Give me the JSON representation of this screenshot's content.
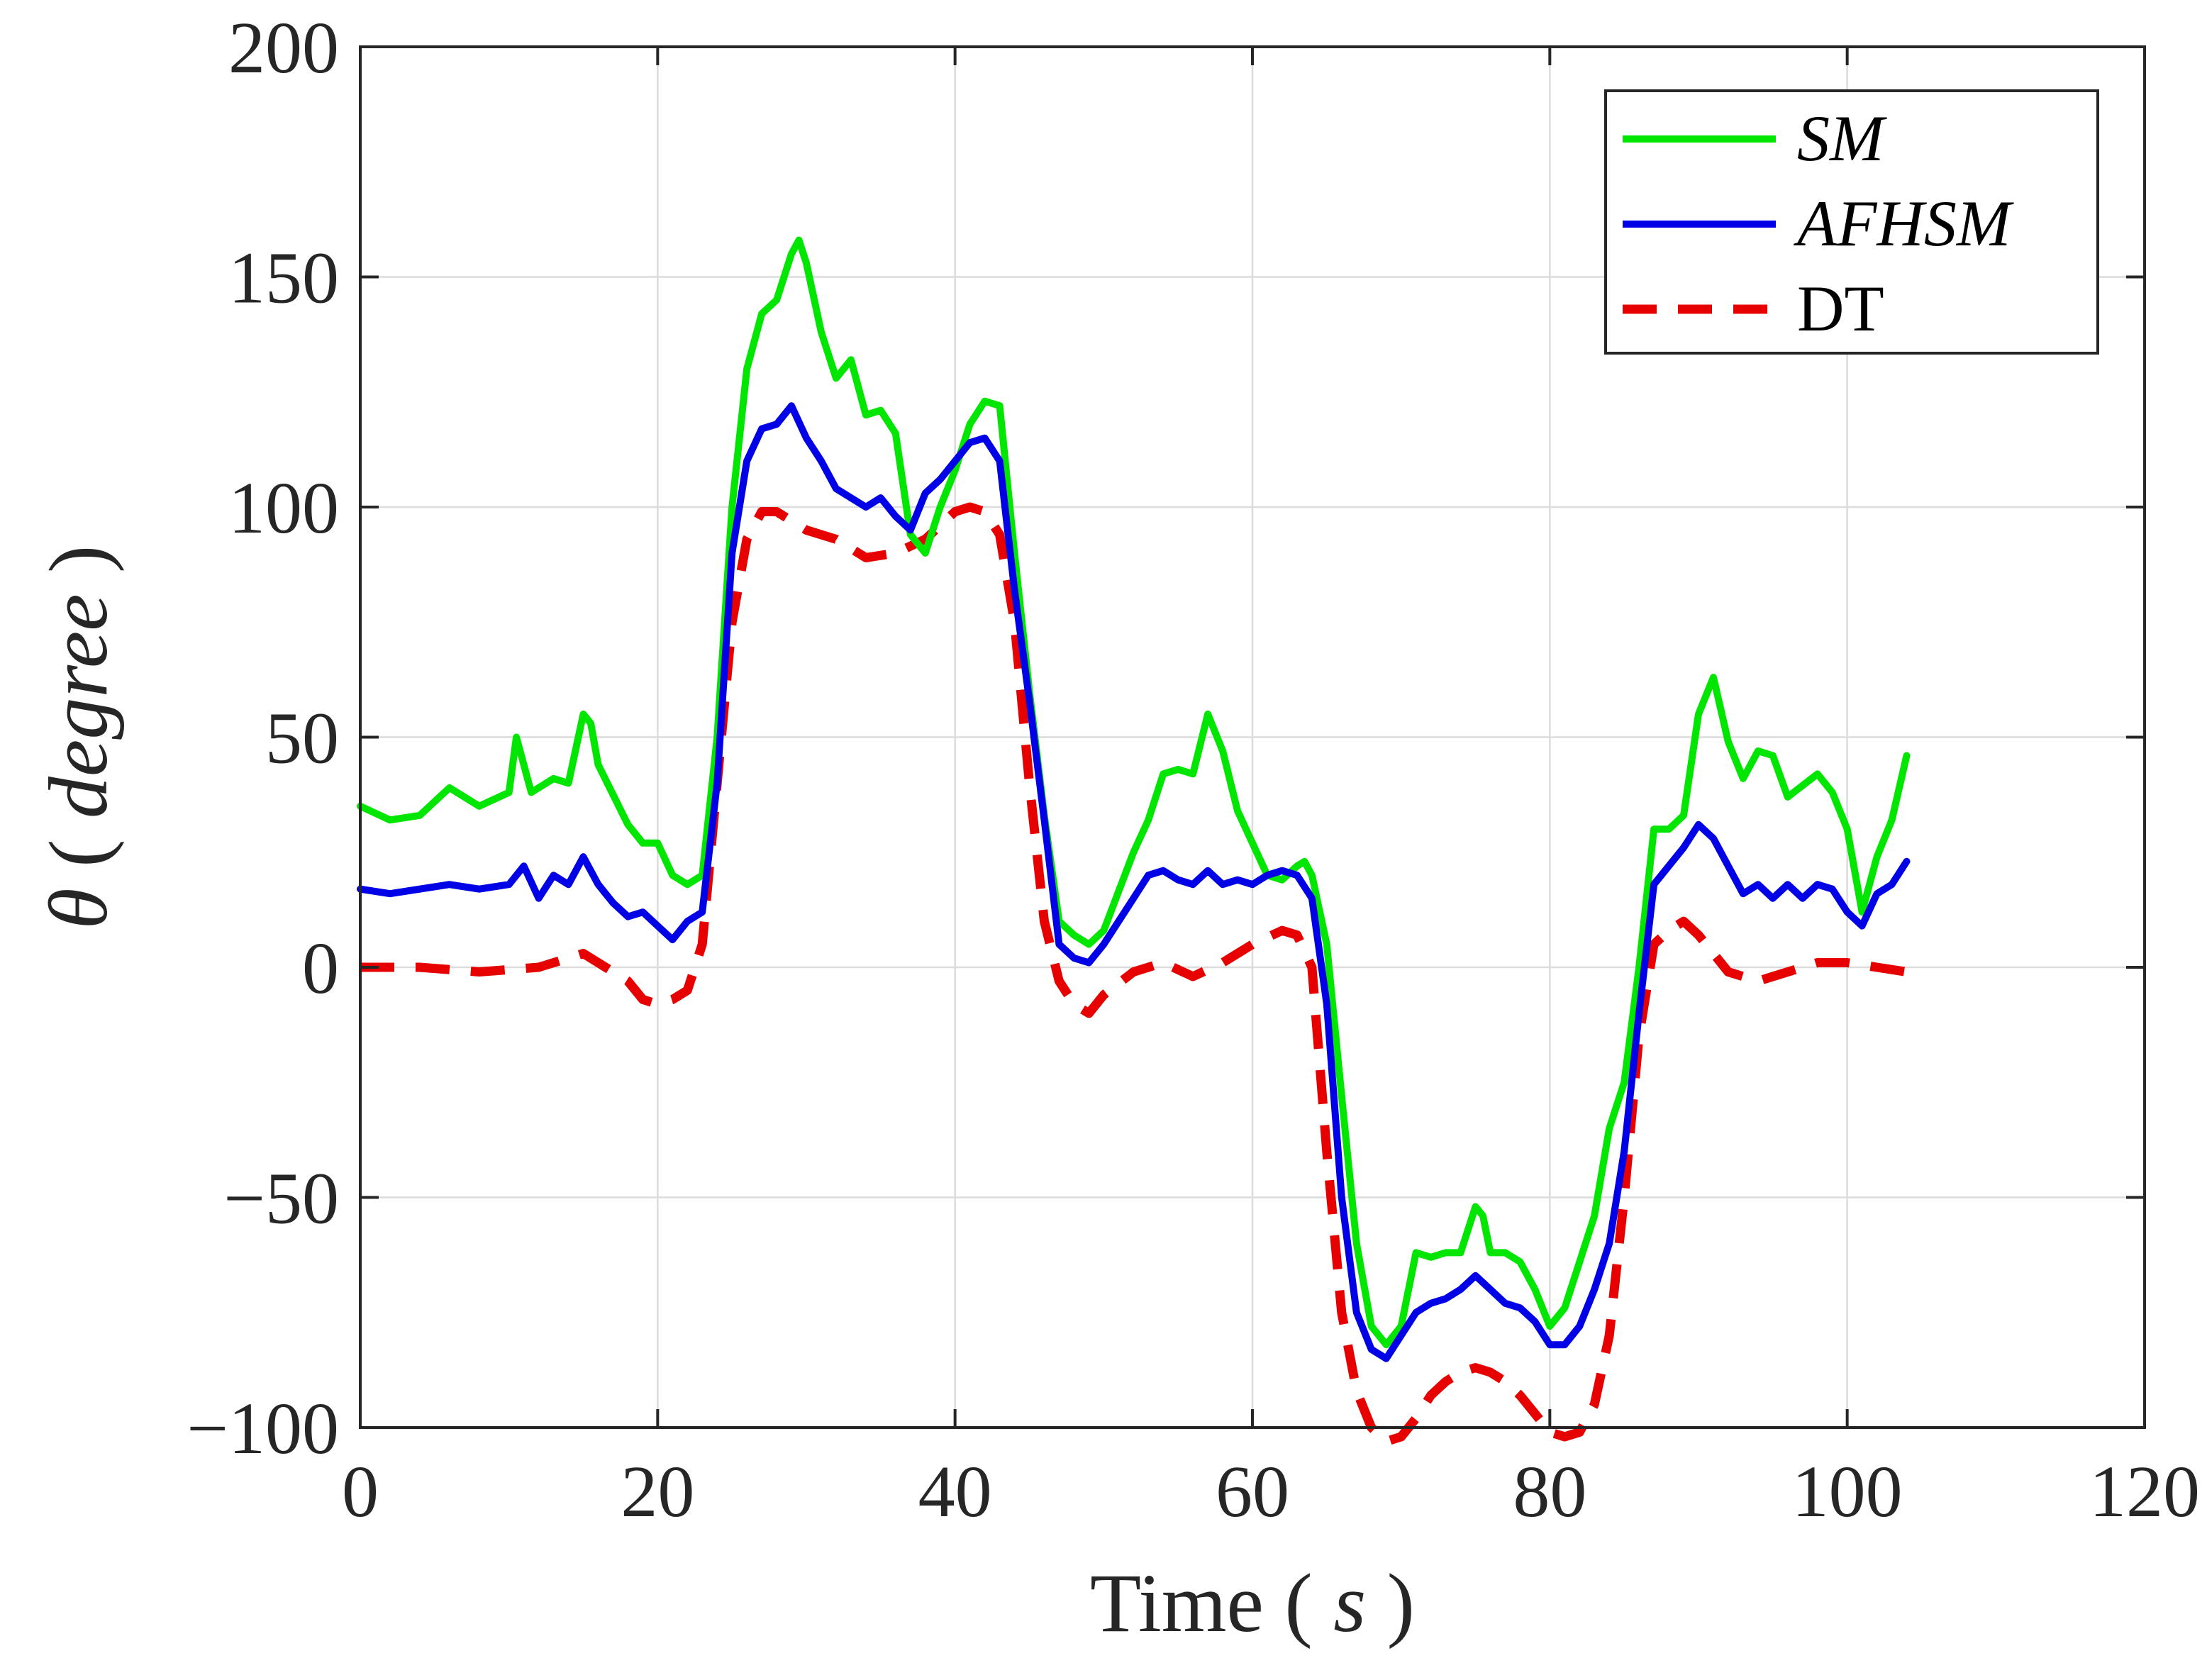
{
  "chart_data": {
    "type": "line",
    "title": "",
    "xlabel": "Time (s)",
    "xlabel_main": "Time",
    "xlabel_unit": "s",
    "ylabel": "θ (degree)",
    "ylabel_symbol": "θ",
    "ylabel_unit": "degree",
    "xlim": [
      0,
      120
    ],
    "ylim": [
      -100,
      200
    ],
    "xticks": [
      0,
      20,
      40,
      60,
      80,
      100,
      120
    ],
    "yticks": [
      -100,
      -50,
      0,
      50,
      100,
      150,
      200
    ],
    "xtick_labels": [
      "0",
      "20",
      "40",
      "60",
      "80",
      "100",
      "120"
    ],
    "ytick_labels": [
      "−100",
      "−50",
      "0",
      "50",
      "100",
      "150",
      "200"
    ],
    "grid": true,
    "legend_position": "top-right",
    "series": [
      {
        "name": "SM",
        "color": "#00e600",
        "style": "solid",
        "points": [
          [
            0,
            35
          ],
          [
            2,
            32
          ],
          [
            4,
            33
          ],
          [
            6,
            39
          ],
          [
            8,
            35
          ],
          [
            10,
            38
          ],
          [
            10.5,
            50
          ],
          [
            11,
            44
          ],
          [
            11.5,
            38
          ],
          [
            13,
            41
          ],
          [
            14,
            40
          ],
          [
            15,
            55
          ],
          [
            15.5,
            53
          ],
          [
            16,
            44
          ],
          [
            18,
            31
          ],
          [
            19,
            27
          ],
          [
            20,
            27
          ],
          [
            21,
            20
          ],
          [
            22,
            18
          ],
          [
            23,
            20
          ],
          [
            24,
            50
          ],
          [
            25,
            100
          ],
          [
            26,
            130
          ],
          [
            27,
            142
          ],
          [
            28,
            145
          ],
          [
            29,
            155
          ],
          [
            29.5,
            158
          ],
          [
            30,
            153
          ],
          [
            31,
            138
          ],
          [
            32,
            128
          ],
          [
            33,
            132
          ],
          [
            34,
            120
          ],
          [
            35,
            121
          ],
          [
            36,
            116
          ],
          [
            37,
            94
          ],
          [
            38,
            90
          ],
          [
            39,
            100
          ],
          [
            40,
            108
          ],
          [
            41,
            118
          ],
          [
            42,
            123
          ],
          [
            43,
            122
          ],
          [
            44,
            90
          ],
          [
            45,
            60
          ],
          [
            46,
            33
          ],
          [
            47,
            10
          ],
          [
            48,
            7
          ],
          [
            49,
            5
          ],
          [
            50,
            8
          ],
          [
            52,
            25
          ],
          [
            53,
            32
          ],
          [
            54,
            42
          ],
          [
            55,
            43
          ],
          [
            56,
            42
          ],
          [
            57,
            55
          ],
          [
            58,
            47
          ],
          [
            59,
            34
          ],
          [
            60,
            27
          ],
          [
            61,
            20
          ],
          [
            62,
            19
          ],
          [
            63,
            22
          ],
          [
            63.5,
            23
          ],
          [
            64,
            20
          ],
          [
            65,
            5
          ],
          [
            66,
            -28
          ],
          [
            67,
            -60
          ],
          [
            68,
            -78
          ],
          [
            69,
            -82
          ],
          [
            70,
            -78
          ],
          [
            71,
            -62
          ],
          [
            72,
            -63
          ],
          [
            73,
            -62
          ],
          [
            74,
            -62
          ],
          [
            75,
            -52
          ],
          [
            75.5,
            -54
          ],
          [
            76,
            -62
          ],
          [
            77,
            -62
          ],
          [
            78,
            -64
          ],
          [
            79,
            -70
          ],
          [
            80,
            -78
          ],
          [
            81,
            -74
          ],
          [
            82,
            -64
          ],
          [
            83,
            -54
          ],
          [
            84,
            -35
          ],
          [
            85,
            -25
          ],
          [
            86,
            0
          ],
          [
            87,
            30
          ],
          [
            88,
            30
          ],
          [
            89,
            33
          ],
          [
            90,
            55
          ],
          [
            91,
            63
          ],
          [
            92,
            49
          ],
          [
            93,
            41
          ],
          [
            94,
            47
          ],
          [
            95,
            46
          ],
          [
            96,
            37
          ],
          [
            98,
            42
          ],
          [
            99,
            38
          ],
          [
            100,
            30
          ],
          [
            101,
            12
          ],
          [
            102,
            24
          ],
          [
            103,
            32
          ],
          [
            104,
            46
          ]
        ]
      },
      {
        "name": "AFHSM",
        "color": "#0000e6",
        "style": "solid",
        "points": [
          [
            0,
            17
          ],
          [
            2,
            16
          ],
          [
            4,
            17
          ],
          [
            6,
            18
          ],
          [
            8,
            17
          ],
          [
            10,
            18
          ],
          [
            11,
            22
          ],
          [
            12,
            15
          ],
          [
            13,
            20
          ],
          [
            14,
            18
          ],
          [
            15,
            24
          ],
          [
            16,
            18
          ],
          [
            17,
            14
          ],
          [
            18,
            11
          ],
          [
            19,
            12
          ],
          [
            20,
            9
          ],
          [
            21,
            6
          ],
          [
            22,
            10
          ],
          [
            23,
            12
          ],
          [
            24,
            40
          ],
          [
            25,
            90
          ],
          [
            26,
            110
          ],
          [
            27,
            117
          ],
          [
            28,
            118
          ],
          [
            29,
            122
          ],
          [
            30,
            115
          ],
          [
            31,
            110
          ],
          [
            32,
            104
          ],
          [
            33,
            102
          ],
          [
            34,
            100
          ],
          [
            35,
            102
          ],
          [
            36,
            98
          ],
          [
            37,
            95
          ],
          [
            38,
            103
          ],
          [
            39,
            106
          ],
          [
            40,
            110
          ],
          [
            41,
            114
          ],
          [
            42,
            115
          ],
          [
            43,
            110
          ],
          [
            44,
            82
          ],
          [
            45,
            58
          ],
          [
            46,
            32
          ],
          [
            47,
            5
          ],
          [
            48,
            2
          ],
          [
            49,
            1
          ],
          [
            50,
            5
          ],
          [
            52,
            15
          ],
          [
            53,
            20
          ],
          [
            54,
            21
          ],
          [
            55,
            19
          ],
          [
            56,
            18
          ],
          [
            57,
            21
          ],
          [
            58,
            18
          ],
          [
            59,
            19
          ],
          [
            60,
            18
          ],
          [
            61,
            20
          ],
          [
            62,
            21
          ],
          [
            63,
            20
          ],
          [
            64,
            15
          ],
          [
            65,
            -8
          ],
          [
            66,
            -50
          ],
          [
            67,
            -75
          ],
          [
            68,
            -83
          ],
          [
            69,
            -85
          ],
          [
            70,
            -80
          ],
          [
            71,
            -75
          ],
          [
            72,
            -73
          ],
          [
            73,
            -72
          ],
          [
            74,
            -70
          ],
          [
            75,
            -67
          ],
          [
            76,
            -70
          ],
          [
            77,
            -73
          ],
          [
            78,
            -74
          ],
          [
            79,
            -77
          ],
          [
            80,
            -82
          ],
          [
            81,
            -82
          ],
          [
            82,
            -78
          ],
          [
            83,
            -70
          ],
          [
            84,
            -60
          ],
          [
            85,
            -40
          ],
          [
            86,
            -10
          ],
          [
            87,
            18
          ],
          [
            88,
            22
          ],
          [
            89,
            26
          ],
          [
            90,
            31
          ],
          [
            91,
            28
          ],
          [
            92,
            22
          ],
          [
            93,
            16
          ],
          [
            94,
            18
          ],
          [
            95,
            15
          ],
          [
            96,
            18
          ],
          [
            97,
            15
          ],
          [
            98,
            18
          ],
          [
            99,
            17
          ],
          [
            100,
            12
          ],
          [
            101,
            9
          ],
          [
            102,
            16
          ],
          [
            103,
            18
          ],
          [
            104,
            23
          ]
        ]
      },
      {
        "name": "DT",
        "color": "#e60000",
        "style": "dashed",
        "points": [
          [
            0,
            0
          ],
          [
            4,
            0
          ],
          [
            8,
            -1
          ],
          [
            12,
            0
          ],
          [
            15,
            3
          ],
          [
            17,
            -1
          ],
          [
            18,
            -3
          ],
          [
            19,
            -7
          ],
          [
            20,
            -8
          ],
          [
            21,
            -7
          ],
          [
            22,
            -5
          ],
          [
            23,
            5
          ],
          [
            24,
            40
          ],
          [
            25,
            75
          ],
          [
            26,
            93
          ],
          [
            27,
            99
          ],
          [
            28,
            99
          ],
          [
            29,
            97
          ],
          [
            30,
            95
          ],
          [
            32,
            93
          ],
          [
            34,
            89
          ],
          [
            36,
            90
          ],
          [
            38,
            93
          ],
          [
            40,
            99
          ],
          [
            41,
            100
          ],
          [
            42,
            99
          ],
          [
            43,
            94
          ],
          [
            44,
            75
          ],
          [
            45,
            40
          ],
          [
            46,
            10
          ],
          [
            47,
            -3
          ],
          [
            48,
            -8
          ],
          [
            49,
            -10
          ],
          [
            50,
            -6
          ],
          [
            52,
            -1
          ],
          [
            54,
            1
          ],
          [
            56,
            -2
          ],
          [
            58,
            1
          ],
          [
            60,
            5
          ],
          [
            62,
            8
          ],
          [
            63,
            7
          ],
          [
            64,
            0
          ],
          [
            65,
            -40
          ],
          [
            66,
            -75
          ],
          [
            67,
            -92
          ],
          [
            68,
            -100
          ],
          [
            69,
            -103
          ],
          [
            70,
            -102
          ],
          [
            71,
            -98
          ],
          [
            72,
            -93
          ],
          [
            73,
            -90
          ],
          [
            74,
            -88
          ],
          [
            75,
            -87
          ],
          [
            76,
            -88
          ],
          [
            77,
            -90
          ],
          [
            78,
            -93
          ],
          [
            79,
            -97
          ],
          [
            80,
            -101
          ],
          [
            81,
            -102
          ],
          [
            82,
            -101
          ],
          [
            83,
            -95
          ],
          [
            84,
            -80
          ],
          [
            85,
            -50
          ],
          [
            86,
            -15
          ],
          [
            87,
            5
          ],
          [
            88,
            8
          ],
          [
            89,
            10
          ],
          [
            90,
            7
          ],
          [
            91,
            3
          ],
          [
            92,
            -1
          ],
          [
            93,
            -2
          ],
          [
            94,
            -3
          ],
          [
            95,
            -2
          ],
          [
            96,
            -1
          ],
          [
            98,
            1
          ],
          [
            100,
            1
          ],
          [
            102,
            0
          ],
          [
            104,
            -1
          ]
        ]
      }
    ]
  }
}
